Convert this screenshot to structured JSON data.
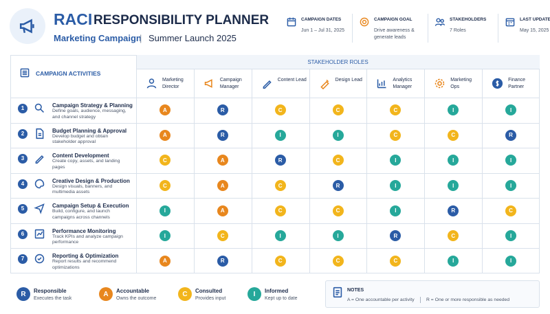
{
  "header": {
    "title": "RACI",
    "title2": "RESPONSIBILITY PLANNER",
    "subtitle": "Marketing Campaign",
    "separator": "|",
    "subtitle2": "Summer Launch 2025"
  },
  "info": [
    {
      "label": "CAMPAIGN DATES",
      "value": "Jun 1 – Jul 31, 2025"
    },
    {
      "label": "CAMPAIGN GOAL",
      "value": "Drive awareness & generate leads"
    },
    {
      "label": "STAKEHOLDERS",
      "value": "7 Roles"
    },
    {
      "label": "LAST UPDATED",
      "value": "May 15, 2025"
    }
  ],
  "table": {
    "activities_header": "CAMPAIGN ACTIVITIES",
    "roles_header": "STAKEHOLDER ROLES",
    "roles": [
      "Marketing Director",
      "Campaign Manager",
      "Content Lead",
      "Design Lead",
      "Analytics Manager",
      "Marketing Ops",
      "Finance Partner"
    ],
    "rows": [
      {
        "number": 1,
        "title": "Campaign Strategy & Planning",
        "description": "Define goals, audience, messaging, and channel strategy",
        "cells": [
          "A",
          "R",
          "C",
          "C",
          "C",
          "I",
          "I"
        ]
      },
      {
        "number": 2,
        "title": "Budget Planning & Approval",
        "description": "Develop budget and obtain stakeholder approval",
        "cells": [
          "A",
          "R",
          "I",
          "I",
          "C",
          "C",
          "R"
        ]
      },
      {
        "number": 3,
        "title": "Content Development",
        "description": "Create copy, assets, and landing pages",
        "cells": [
          "C",
          "A",
          "R",
          "C",
          "I",
          "I",
          "I"
        ]
      },
      {
        "number": 4,
        "title": "Creative Design & Production",
        "description": "Design visuals, banners, and multimedia assets",
        "cells": [
          "C",
          "A",
          "C",
          "R",
          "I",
          "I",
          "I"
        ]
      },
      {
        "number": 5,
        "title": "Campaign Setup & Execution",
        "description": "Build, configure, and launch campaigns across channels",
        "cells": [
          "I",
          "A",
          "C",
          "C",
          "I",
          "R",
          "C"
        ]
      },
      {
        "number": 6,
        "title": "Performance Monitoring",
        "description": "Track KPIs and analyze campaign performance",
        "cells": [
          "I",
          "C",
          "I",
          "I",
          "R",
          "C",
          "I"
        ]
      },
      {
        "number": 7,
        "title": "Reporting & Optimization",
        "description": "Report results and recommend optimizations",
        "cells": [
          "A",
          "R",
          "C",
          "C",
          "C",
          "I",
          "I"
        ]
      }
    ]
  },
  "legend": [
    {
      "letter": "R",
      "label": "Responsible",
      "description": "Executes the task",
      "color": "#2b5ca6"
    },
    {
      "letter": "A",
      "label": "Accountable",
      "description": "Owns the outcome",
      "color": "#e8871e"
    },
    {
      "letter": "C",
      "label": "Consulted",
      "description": "Provides input",
      "color": "#f2b51c"
    },
    {
      "letter": "I",
      "label": "Informed",
      "description": "Kept up to date",
      "color": "#26a89a"
    }
  ],
  "notes": {
    "title": "NOTES",
    "items": [
      "A = One accountable per activity",
      "R = One or more responsible as needed"
    ]
  }
}
